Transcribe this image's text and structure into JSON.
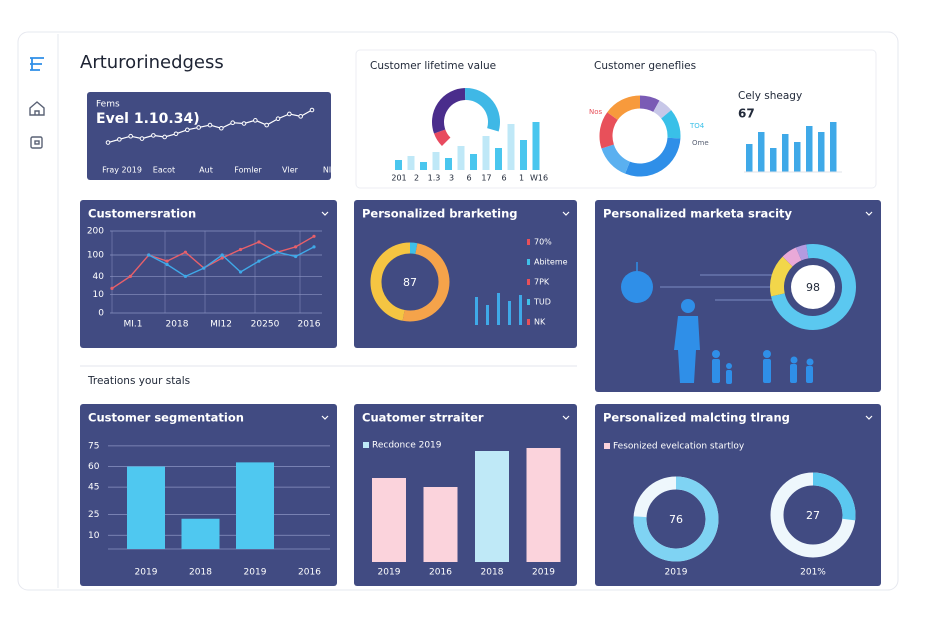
{
  "app": {
    "title": "Arturorinedgess",
    "section": "Treations your stals"
  },
  "summary": {
    "label": "Fems",
    "headline": "Evel 1.10.34)",
    "values": [
      22,
      26,
      30,
      27,
      31,
      29,
      33,
      38,
      41,
      44,
      40,
      47,
      46,
      50,
      44,
      52,
      58,
      55,
      63
    ],
    "categories": [
      "Fray 2019",
      "Eacot",
      "Aut",
      "Fomler",
      "Vler",
      "Nlog"
    ]
  },
  "lifetime": {
    "title": "Customer lifetime value",
    "donut": [
      {
        "value": 7,
        "color": "#e84a5f"
      },
      {
        "value": 30,
        "color": "#4a2d8c"
      },
      {
        "value": 30,
        "color": "#3fb8e6"
      }
    ],
    "bars": [
      10,
      14,
      8,
      18,
      12,
      24,
      16,
      34,
      22,
      46,
      30,
      48
    ],
    "bar_colors": [
      "#49c6ee",
      "#bfe8f7",
      "#49c6ee",
      "#bfe8f7",
      "#49c6ee",
      "#bfe8f7",
      "#49c6ee",
      "#bfe8f7",
      "#49c6ee",
      "#bfe8f7",
      "#49c6ee",
      "#49c6ee"
    ],
    "categories": [
      "201",
      "2",
      "1.3",
      "3",
      "6",
      "17",
      "6",
      "1",
      "W16"
    ]
  },
  "genes": {
    "title": "Customer geneflies",
    "donut": [
      {
        "value": 8,
        "color": "#7a5bb5"
      },
      {
        "value": 6,
        "color": "#c7c7e8"
      },
      {
        "value": 12,
        "color": "#39c0e8"
      },
      {
        "value": 30,
        "color": "#2f8fe8"
      },
      {
        "value": 14,
        "color": "#5ab0f0"
      },
      {
        "value": 15,
        "color": "#e8505a"
      },
      {
        "value": 15,
        "color": "#f79a3c"
      }
    ],
    "labels": [
      "Nos",
      "TO4",
      "Ome"
    ]
  },
  "daily": {
    "title": "Cely sheagy",
    "value": 67,
    "bars": [
      28,
      40,
      24,
      38,
      30,
      46,
      40,
      50
    ],
    "color": "#3fa9e8"
  },
  "ration": {
    "title": "Customersration",
    "ylim": [
      0,
      200
    ],
    "yscale": "sqrt",
    "yticks": [
      200,
      100,
      40,
      10,
      0
    ],
    "categories": [
      "MI.1",
      "2018",
      "MI12",
      "20250",
      "2016"
    ],
    "series": [
      {
        "color": "#e8606a",
        "values": [
          18,
          40,
          100,
          80,
          110,
          60,
          90,
          120,
          150,
          110,
          130,
          175
        ]
      },
      {
        "color": "#3fa9e8",
        "values": [
          null,
          null,
          100,
          70,
          40,
          60,
          100,
          50,
          80,
          110,
          95,
          130
        ]
      }
    ]
  },
  "brarketing": {
    "title": "Personalized brarketing",
    "center": 87,
    "donut": [
      {
        "value": 3,
        "color": "#3fc0e8"
      },
      {
        "value": 50,
        "color": "#f5a34a"
      },
      {
        "value": 47,
        "color": "#f5c542"
      }
    ],
    "bars": [
      28,
      20,
      32,
      24,
      30
    ],
    "bar_color": "#3fa9e8",
    "legend": [
      {
        "label": "70%",
        "color": "#e8505a"
      },
      {
        "label": "Abiteme",
        "color": "#3fc0e8"
      },
      {
        "label": "7PK",
        "color": "#e8505a"
      },
      {
        "label": "TUD",
        "color": "#3fc0e8"
      },
      {
        "label": "NK",
        "color": "#e8505a"
      }
    ]
  },
  "sracity": {
    "title": "Personalized marketa sracity",
    "center": 98,
    "donut": [
      {
        "value": 6,
        "color": "#e9a9d8"
      },
      {
        "value": 4,
        "color": "#b49be0"
      },
      {
        "value": 74,
        "color": "#5bc8f0"
      },
      {
        "value": 16,
        "color": "#f2d64a"
      }
    ]
  },
  "segmentation": {
    "title": "Customer segmentation",
    "ylim": [
      0,
      80
    ],
    "yticks": [
      75,
      60,
      45,
      25,
      10
    ],
    "categories": [
      "2019",
      "2018",
      "2019",
      "2016"
    ],
    "values": [
      60,
      22,
      63,
      null
    ],
    "color": "#4fc8f0"
  },
  "strraiter": {
    "title": "Cuatomer strraiter",
    "legend": "Recdonce 2019",
    "legend_color": "#bfe9f7",
    "categories": [
      "2019",
      "2016",
      "2018",
      "2019"
    ],
    "values": [
      84,
      75,
      111,
      114
    ],
    "colors": [
      "#fbd3dc",
      "#fbd3dc",
      "#bfe9f7",
      "#fbd3dc"
    ]
  },
  "malcting": {
    "title": "Personalized malcting tlrang",
    "legend": "Fesonized evelcation startloy",
    "legend_color": "#fbd3dc",
    "donuts": [
      {
        "value": 76,
        "label": "2019",
        "color": "#7fd3f3"
      },
      {
        "value": 27,
        "label": "201%",
        "color": "#5bc8f0"
      }
    ]
  }
}
